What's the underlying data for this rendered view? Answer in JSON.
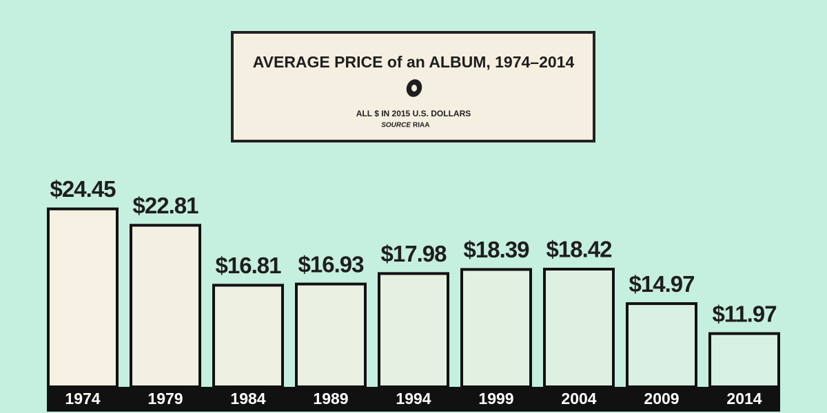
{
  "chart_data": {
    "type": "bar",
    "title": "AVERAGE PRICE of an ALBUM, 1974–2014",
    "subtitle": "ALL $ IN 2015 U.S. DOLLARS",
    "source": {
      "label": "SOURCE",
      "text": "RIAA"
    },
    "categories": [
      "1974",
      "1979",
      "1984",
      "1989",
      "1994",
      "1999",
      "2004",
      "2009",
      "2014"
    ],
    "values": [
      24.45,
      22.81,
      16.81,
      16.93,
      17.98,
      18.39,
      18.42,
      14.97,
      11.97
    ],
    "value_labels": [
      "$24.45",
      "$22.81",
      "$16.81",
      "$16.93",
      "$17.98",
      "$18.39",
      "$18.42",
      "$14.97",
      "$11.97"
    ],
    "colors": [
      "#f6f0e2",
      "#f2f0e2",
      "#eef0e2",
      "#eaf0e2",
      "#e6f0e2",
      "#e2f0e2",
      "#def0e2",
      "#daf0e2",
      "#d6f0e2"
    ],
    "ylim": [
      6.5,
      26
    ]
  }
}
